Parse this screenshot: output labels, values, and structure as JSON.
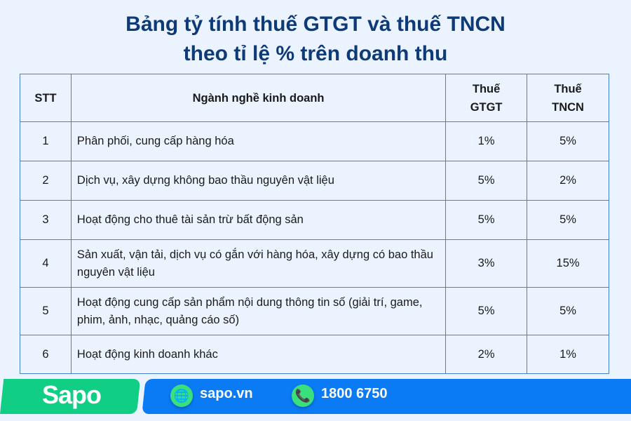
{
  "title": {
    "line1": "Bảng tỷ tính thuế GTGT và thuế TNCN",
    "line2": "theo tỉ lệ % trên doanh thu"
  },
  "table": {
    "headers": [
      "STT",
      "Ngành nghề kinh doanh",
      "Thuế GTGT",
      "Thuế TNCN"
    ],
    "rows": [
      {
        "stt": "1",
        "name": "Phân phối, cung cấp hàng hóa",
        "gtgt": "1%",
        "tncn": "5%"
      },
      {
        "stt": "2",
        "name": "Dịch vụ, xây dựng không bao thầu nguyên vật liệu",
        "gtgt": "5%",
        "tncn": "2%"
      },
      {
        "stt": "3",
        "name": "Hoạt động cho thuê tài sản trừ bất động sản",
        "gtgt": "5%",
        "tncn": "5%"
      },
      {
        "stt": "4",
        "name": "Sản xuất, vận tải, dịch vụ có gắn với hàng hóa, xây dựng có bao thầu nguyên vật liệu",
        "gtgt": "3%",
        "tncn": "15%"
      },
      {
        "stt": "5",
        "name": "Hoạt động cung cấp sản phẩm nội dung thông tin số (giải trí, game, phim, ảnh, nhạc, quảng cáo số)",
        "gtgt": "5%",
        "tncn": "5%"
      },
      {
        "stt": "6",
        "name": "Hoạt động kinh doanh khác",
        "gtgt": "2%",
        "tncn": "1%"
      }
    ]
  },
  "footer": {
    "logo": "Sapo",
    "website": "sapo.vn",
    "phone": "1800 6750",
    "icons": [
      "globe-icon",
      "phone-icon"
    ],
    "colors": {
      "green": "#10cf84",
      "blue": "#0a7bf5"
    }
  }
}
